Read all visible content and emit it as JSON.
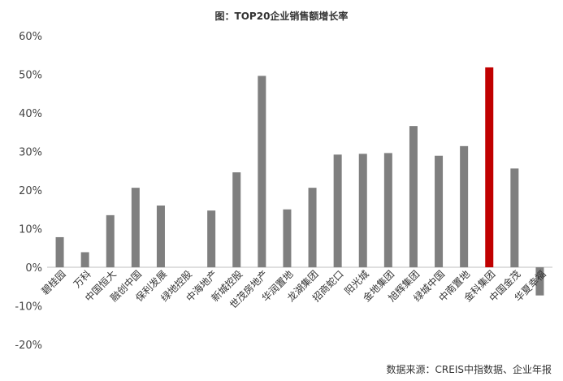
{
  "chart_data": {
    "type": "bar",
    "title": "图：TOP20企业销售额增长率",
    "source": "数据来源：CREIS中指数据、企业年报",
    "xlabel": "",
    "ylabel": "",
    "ylim": [
      -20,
      60
    ],
    "yticks": [
      "-20%",
      "-10%",
      "0%",
      "10%",
      "20%",
      "30%",
      "40%",
      "50%",
      "60%"
    ],
    "grid": false,
    "categories": [
      "碧桂园",
      "万科",
      "中国恒大",
      "融创中国",
      "保利发展",
      "绿地控股",
      "中海地产",
      "新城控股",
      "世茂房地产",
      "华润置地",
      "龙湖集团",
      "招商蛇口",
      "阳光城",
      "金地集团",
      "旭辉集团",
      "绿城中国",
      "中南置地",
      "金科集团",
      "中国金茂",
      "华夏幸福"
    ],
    "values": [
      7.8,
      3.9,
      13.5,
      20.6,
      16.0,
      0,
      14.7,
      24.6,
      49.6,
      15.0,
      20.6,
      29.2,
      29.4,
      29.6,
      36.6,
      28.9,
      31.4,
      51.8,
      25.6,
      -7.3
    ],
    "bar_color": "#7f7f7f",
    "highlight_color": "#c00000",
    "highlight_index": 17
  }
}
